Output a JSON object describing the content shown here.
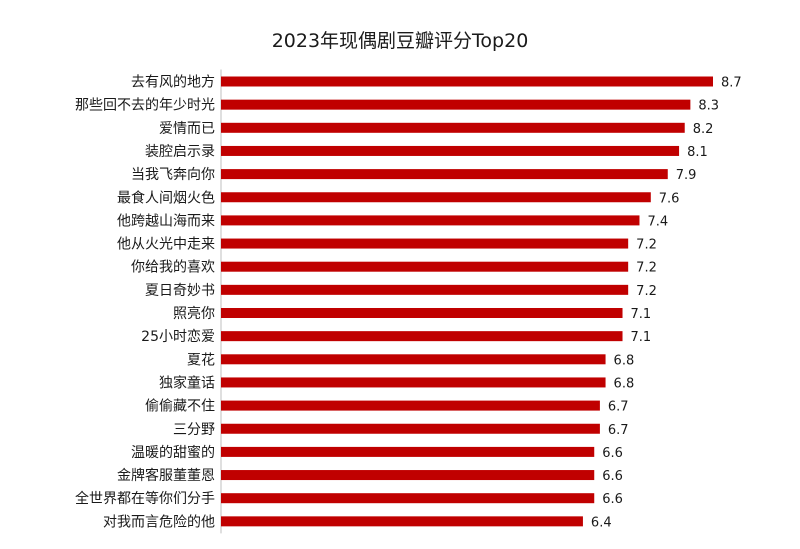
{
  "chart_data": {
    "type": "bar",
    "orientation": "horizontal",
    "title": "2023年现偶剧豆瓣评分Top20",
    "xlabel": "",
    "ylabel": "",
    "xlim": [
      0,
      8.7
    ],
    "grid": false,
    "legend": "none",
    "bar_color": "#c00000",
    "categories": [
      "去有风的地方",
      "那些回不去的年少时光",
      "爱情而已",
      "装腔启示录",
      "当我飞奔向你",
      "最食人间烟火色",
      "他跨越山海而来",
      "他从火光中走来",
      "你给我的喜欢",
      "夏日奇妙书",
      "照亮你",
      "25小时恋爱",
      "夏花",
      "独家童话",
      "偷偷藏不住",
      "三分野",
      "温暖的甜蜜的",
      "金牌客服董董恩",
      "全世界都在等你们分手",
      "对我而言危险的他"
    ],
    "values": [
      8.7,
      8.3,
      8.2,
      8.1,
      7.9,
      7.6,
      7.4,
      7.2,
      7.2,
      7.2,
      7.1,
      7.1,
      6.8,
      6.8,
      6.7,
      6.7,
      6.6,
      6.6,
      6.6,
      6.4
    ]
  }
}
